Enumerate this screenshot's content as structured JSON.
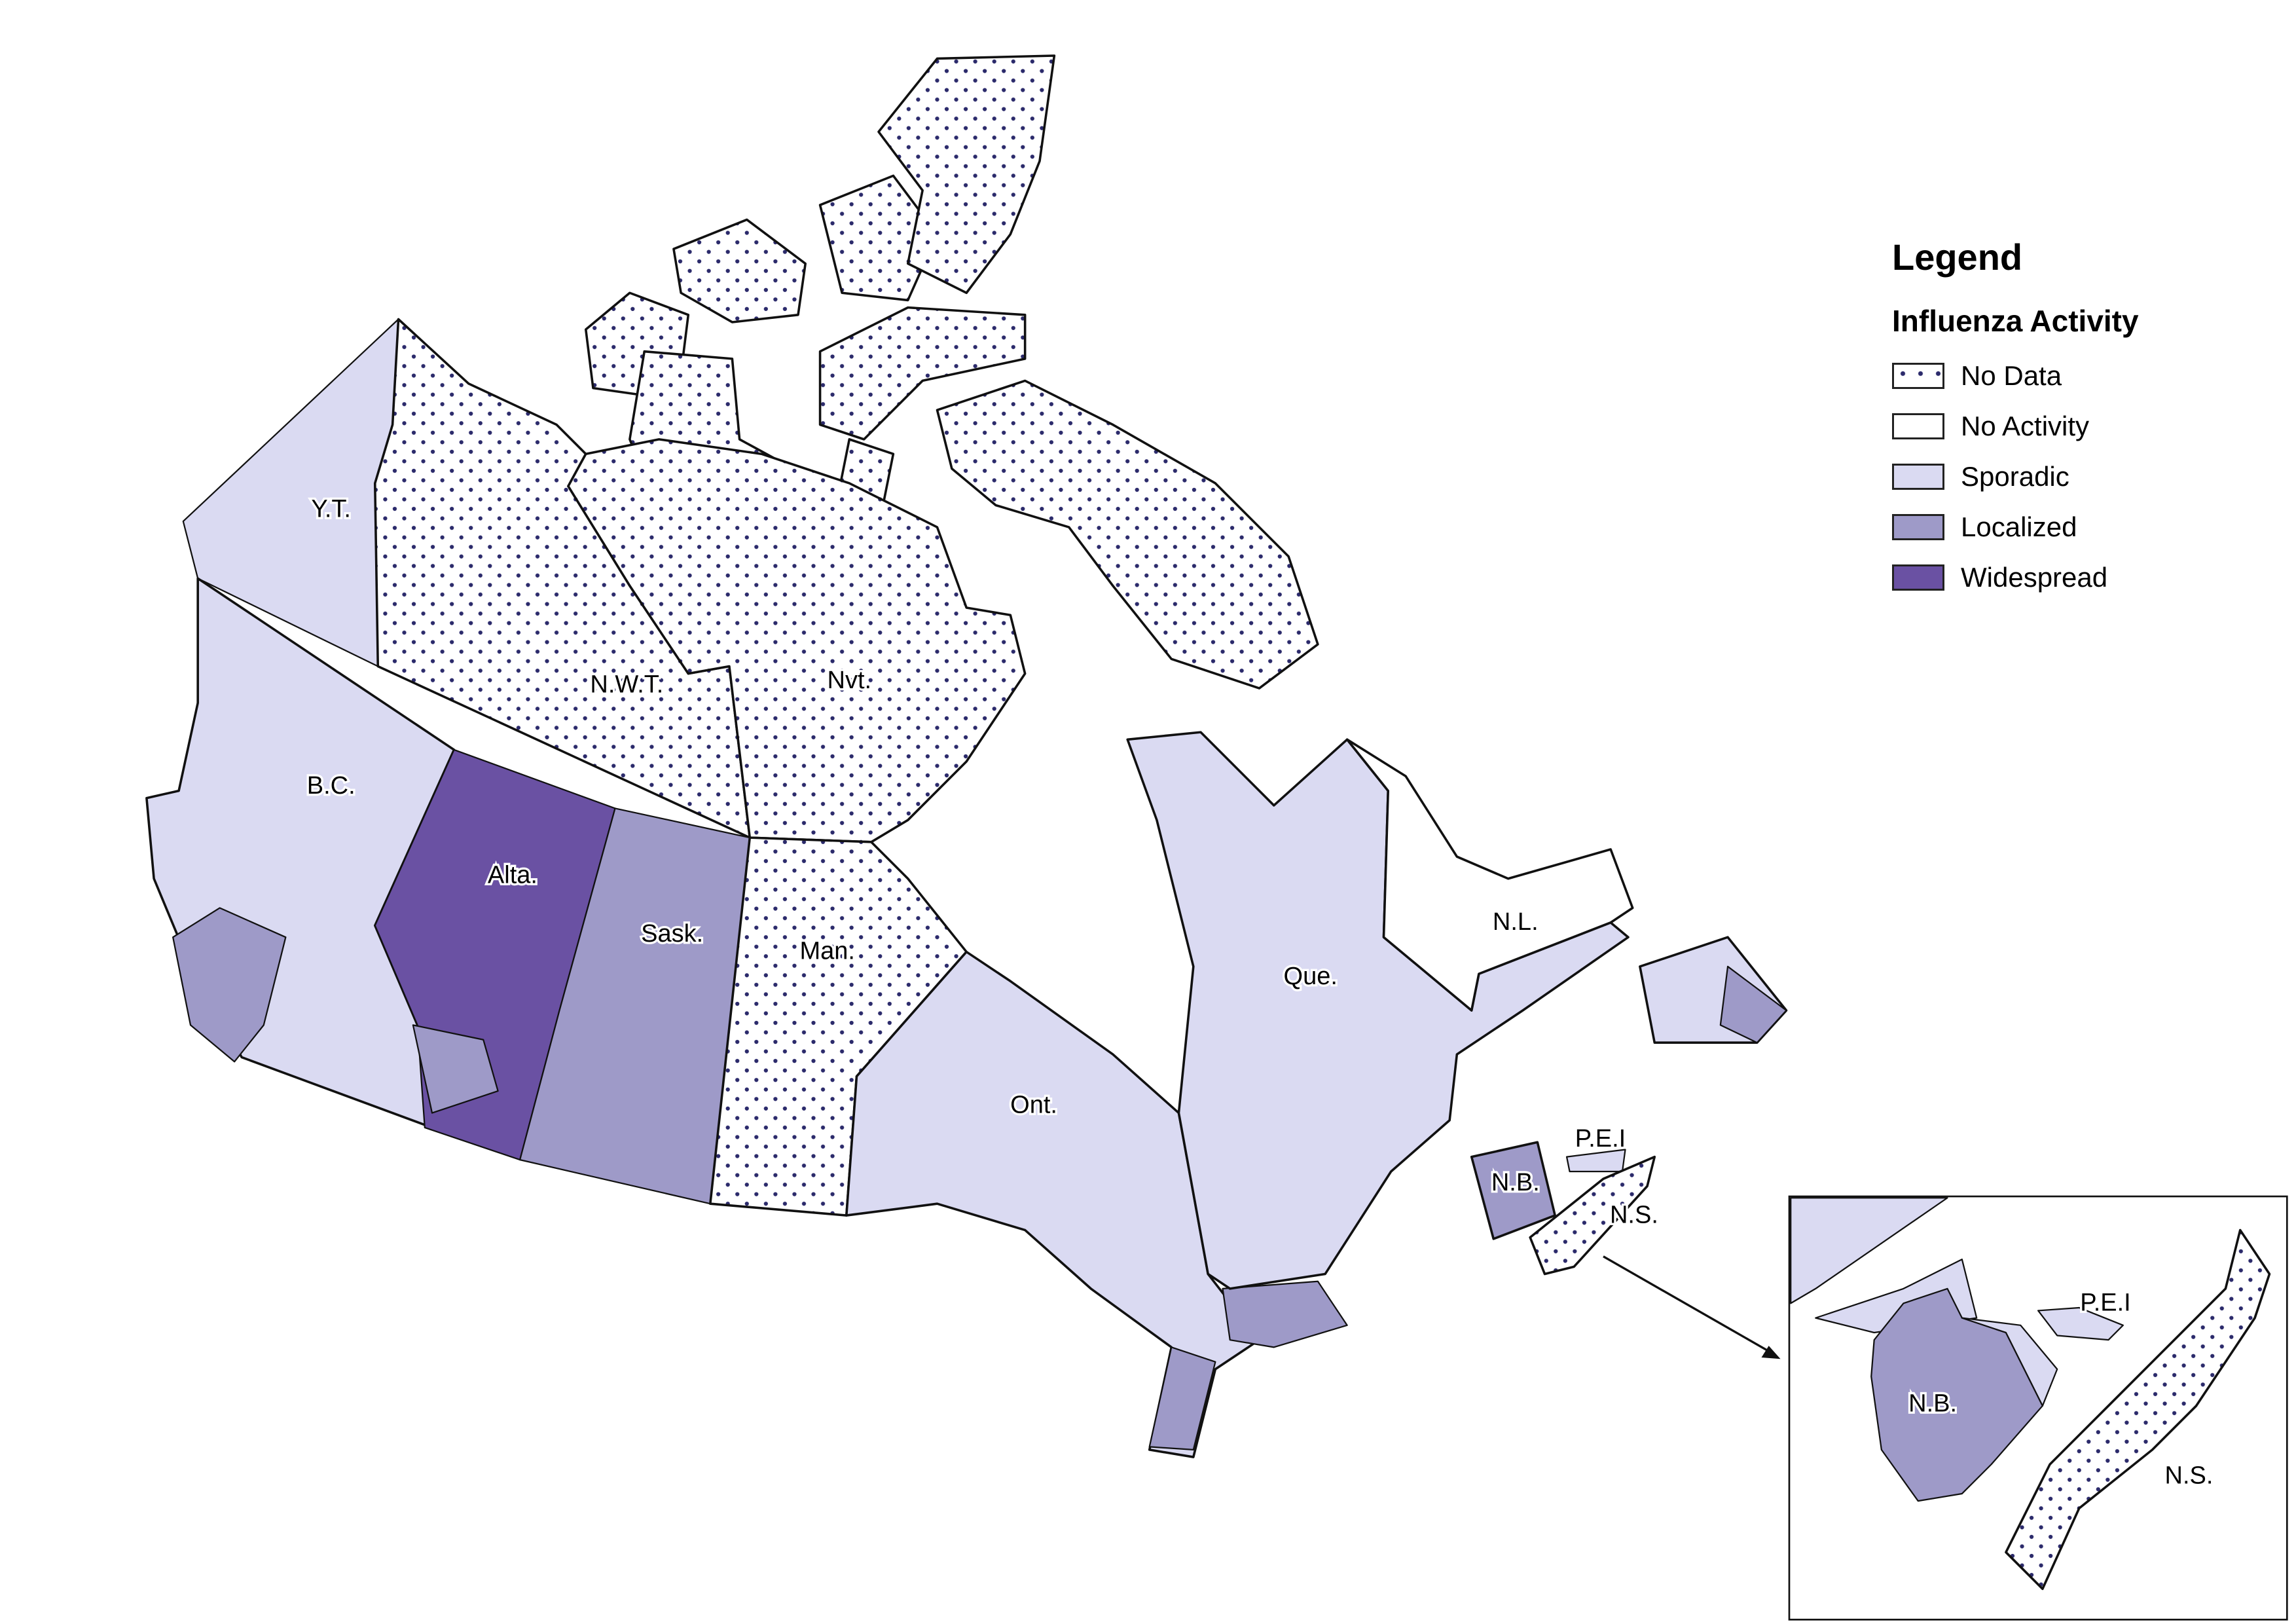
{
  "legend": {
    "title": "Legend",
    "subtitle": "Influenza Activity",
    "items": [
      {
        "label": "No Data",
        "key": "nodata",
        "color": "#ffffff",
        "pattern": "dots",
        "dot_color": "#2b2a6b"
      },
      {
        "label": "No Activity",
        "key": "none",
        "color": "#ffffff"
      },
      {
        "label": "Sporadic",
        "key": "sporadic",
        "color": "#dadaf2"
      },
      {
        "label": "Localized",
        "key": "localized",
        "color": "#9e9ac8"
      },
      {
        "label": "Widespread",
        "key": "widespread",
        "color": "#6a51a3"
      }
    ]
  },
  "regions": [
    {
      "label": "Y.T.",
      "activity": "sporadic"
    },
    {
      "label": "N.W.T.",
      "activity": "nodata"
    },
    {
      "label": "Nvt.",
      "activity": "nodata"
    },
    {
      "label": "B.C.",
      "activity": "sporadic"
    },
    {
      "label": "Alta.",
      "activity": "widespread"
    },
    {
      "label": "Sask.",
      "activity": "localized"
    },
    {
      "label": "Man.",
      "activity": "nodata"
    },
    {
      "label": "Ont.",
      "activity": "sporadic"
    },
    {
      "label": "Que.",
      "activity": "sporadic"
    },
    {
      "label": "N.L.",
      "activity": "none"
    },
    {
      "label": "N.B.",
      "activity": "localized"
    },
    {
      "label": "P.E.I",
      "activity": "sporadic"
    },
    {
      "label": "N.S.",
      "activity": "nodata"
    }
  ],
  "inset": {
    "labels": {
      "nb": "N.B.",
      "pei": "P.E.I",
      "ns": "N.S."
    }
  }
}
